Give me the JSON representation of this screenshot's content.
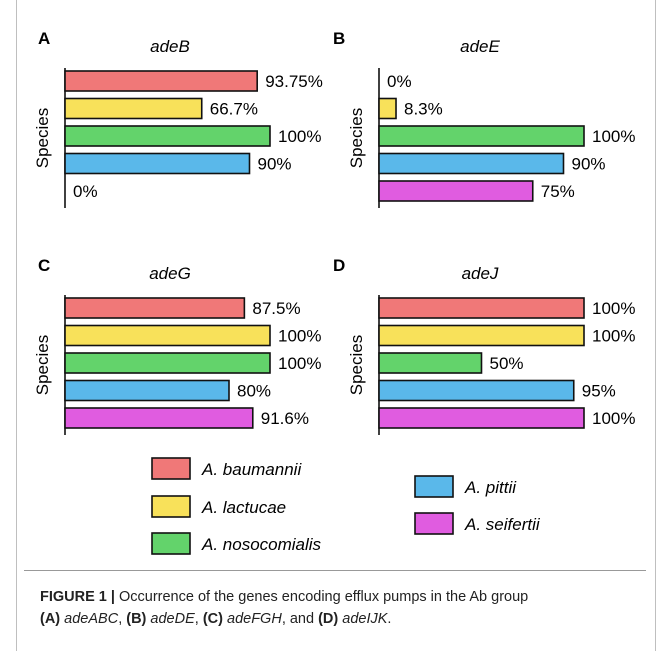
{
  "chart_data": [
    {
      "type": "bar",
      "panel": "A",
      "title": "adeB",
      "ylabel": "Species",
      "categories": [
        "A. baumannii",
        "A. lactucae",
        "A. nosocomialis",
        "A. pittii",
        "A. seifertii"
      ],
      "values": [
        93.75,
        66.7,
        100,
        90,
        0
      ],
      "labels": [
        "93.75%",
        "66.7%",
        "100%",
        "90%",
        "0%"
      ],
      "xlim": [
        0,
        100
      ]
    },
    {
      "type": "bar",
      "panel": "B",
      "title": "adeE",
      "ylabel": "Species",
      "categories": [
        "A. baumannii",
        "A. lactucae",
        "A. nosocomialis",
        "A. pittii",
        "A. seifertii"
      ],
      "values": [
        0,
        8.3,
        100,
        90,
        75
      ],
      "labels": [
        "0%",
        "8.3%",
        "100%",
        "90%",
        "75%"
      ],
      "xlim": [
        0,
        100
      ]
    },
    {
      "type": "bar",
      "panel": "C",
      "title": "adeG",
      "ylabel": "Species",
      "categories": [
        "A. baumannii",
        "A. lactucae",
        "A. nosocomialis",
        "A. pittii",
        "A. seifertii"
      ],
      "values": [
        87.5,
        100,
        100,
        80,
        91.6
      ],
      "labels": [
        "87.5%",
        "100%",
        "100%",
        "80%",
        "91.6%"
      ],
      "xlim": [
        0,
        100
      ]
    },
    {
      "type": "bar",
      "panel": "D",
      "title": "adeJ",
      "ylabel": "Species",
      "categories": [
        "A. baumannii",
        "A. lactucae",
        "A. nosocomialis",
        "A. pittii",
        "A. seifertii"
      ],
      "values": [
        100,
        100,
        50,
        95,
        100
      ],
      "labels": [
        "100%",
        "100%",
        "50%",
        "95%",
        "100%"
      ],
      "xlim": [
        0,
        100
      ]
    }
  ],
  "legend": [
    {
      "name": "A. baumannii",
      "color": "#f07878"
    },
    {
      "name": "A. lactucae",
      "color": "#f8e15a"
    },
    {
      "name": "A. nosocomialis",
      "color": "#63d36b"
    },
    {
      "name": "A. pittii",
      "color": "#5ab8ea"
    },
    {
      "name": "A. seifertii",
      "color": "#e05ce0"
    }
  ],
  "caption": {
    "figure_label": "FIGURE 1 |",
    "text": " Occurrence of the genes encoding efflux pumps in the Ab group",
    "parts": [
      {
        "label": "(A)",
        "gene": "adeABC",
        "sep": ", "
      },
      {
        "label": "(B)",
        "gene": "adeDE",
        "sep": ", "
      },
      {
        "label": "(C)",
        "gene": "adeFGH",
        "sep": ", and "
      },
      {
        "label": "(D)",
        "gene": "adeIJK",
        "sep": "."
      }
    ]
  }
}
